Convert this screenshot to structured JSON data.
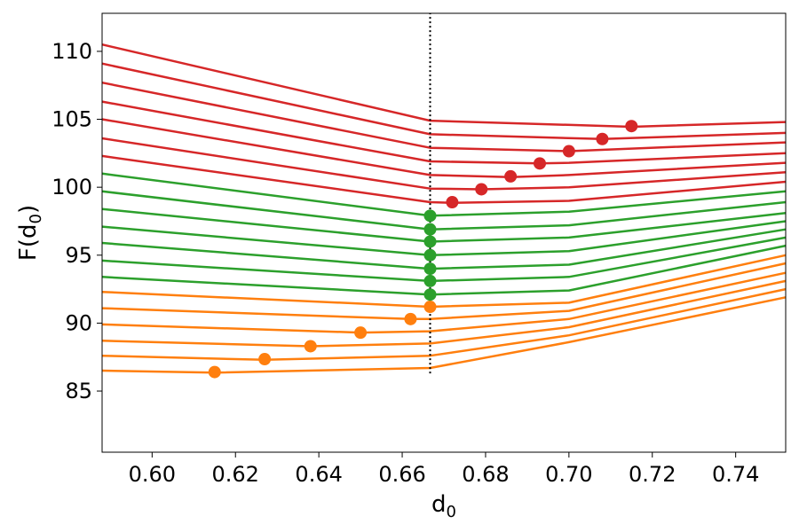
{
  "chart_data": {
    "type": "line",
    "title": "",
    "xlabel": "d",
    "xlabel_sub": "0",
    "ylabel_prefix": "F(d",
    "ylabel_sub": "0",
    "ylabel_suffix": ")",
    "xlim": [
      0.588,
      0.752
    ],
    "ylim": [
      80.5,
      112.8
    ],
    "xticks": [
      0.6,
      0.62,
      0.64,
      0.66,
      0.68,
      0.7,
      0.72,
      0.74
    ],
    "xtick_labels": [
      "0.60",
      "0.62",
      "0.64",
      "0.66",
      "0.68",
      "0.70",
      "0.72",
      "0.74"
    ],
    "yticks": [
      85,
      90,
      95,
      100,
      105,
      110
    ],
    "ytick_labels": [
      "85",
      "90",
      "95",
      "100",
      "105",
      "110"
    ],
    "grid": false,
    "vline": {
      "x": 0.6667,
      "y_range": [
        86.3,
        112.8
      ],
      "style": "dotted",
      "color": "#000000"
    },
    "colors": {
      "orange": "#ff7f0e",
      "green": "#2ca02c",
      "red": "#d62728"
    },
    "series": [
      {
        "color": "#ff7f0e",
        "points": [
          [
            0.588,
            86.5
          ],
          [
            0.615,
            86.35
          ],
          [
            0.6667,
            86.7
          ],
          [
            0.7,
            88.6
          ],
          [
            0.752,
            91.9
          ]
        ],
        "marker": [
          0.615,
          86.4
        ]
      },
      {
        "color": "#ff7f0e",
        "points": [
          [
            0.588,
            87.6
          ],
          [
            0.627,
            87.3
          ],
          [
            0.6667,
            87.6
          ],
          [
            0.7,
            89.1
          ],
          [
            0.752,
            92.5
          ]
        ],
        "marker": [
          0.627,
          87.35
        ]
      },
      {
        "color": "#ff7f0e",
        "points": [
          [
            0.588,
            88.7
          ],
          [
            0.638,
            88.3
          ],
          [
            0.6667,
            88.5
          ],
          [
            0.7,
            89.7
          ],
          [
            0.752,
            93.1
          ]
        ],
        "marker": [
          0.638,
          88.3
        ]
      },
      {
        "color": "#ff7f0e",
        "points": [
          [
            0.588,
            89.9
          ],
          [
            0.65,
            89.3
          ],
          [
            0.6667,
            89.4
          ],
          [
            0.7,
            90.3
          ],
          [
            0.752,
            93.7
          ]
        ],
        "marker": [
          0.65,
          89.3
        ]
      },
      {
        "color": "#ff7f0e",
        "points": [
          [
            0.588,
            91.1
          ],
          [
            0.662,
            90.3
          ],
          [
            0.6667,
            90.3
          ],
          [
            0.7,
            90.9
          ],
          [
            0.752,
            94.4
          ]
        ],
        "marker": [
          0.662,
          90.3
        ]
      },
      {
        "color": "#ff7f0e",
        "points": [
          [
            0.588,
            92.3
          ],
          [
            0.6667,
            91.2
          ],
          [
            0.7,
            91.5
          ],
          [
            0.752,
            95.0
          ]
        ],
        "marker": [
          0.6667,
          91.2
        ]
      },
      {
        "color": "#2ca02c",
        "points": [
          [
            0.588,
            93.4
          ],
          [
            0.6667,
            92.1
          ],
          [
            0.7,
            92.4
          ],
          [
            0.752,
            95.7
          ]
        ],
        "marker": [
          0.6667,
          92.1
        ]
      },
      {
        "color": "#2ca02c",
        "points": [
          [
            0.588,
            94.6
          ],
          [
            0.6667,
            93.1
          ],
          [
            0.7,
            93.4
          ],
          [
            0.752,
            96.3
          ]
        ],
        "marker": [
          0.6667,
          93.1
        ]
      },
      {
        "color": "#2ca02c",
        "points": [
          [
            0.588,
            95.9
          ],
          [
            0.6667,
            94.0
          ],
          [
            0.7,
            94.3
          ],
          [
            0.752,
            96.9
          ]
        ],
        "marker": [
          0.6667,
          94.0
        ]
      },
      {
        "color": "#2ca02c",
        "points": [
          [
            0.588,
            97.1
          ],
          [
            0.6667,
            95.0
          ],
          [
            0.7,
            95.3
          ],
          [
            0.752,
            97.5
          ]
        ],
        "marker": [
          0.6667,
          95.0
        ]
      },
      {
        "color": "#2ca02c",
        "points": [
          [
            0.588,
            98.4
          ],
          [
            0.6667,
            96.0
          ],
          [
            0.7,
            96.3
          ],
          [
            0.752,
            98.1
          ]
        ],
        "marker": [
          0.6667,
          96.0
        ]
      },
      {
        "color": "#2ca02c",
        "points": [
          [
            0.588,
            99.7
          ],
          [
            0.6667,
            96.9
          ],
          [
            0.7,
            97.2
          ],
          [
            0.752,
            98.9
          ]
        ],
        "marker": [
          0.6667,
          96.9
        ]
      },
      {
        "color": "#2ca02c",
        "points": [
          [
            0.588,
            101.0
          ],
          [
            0.6667,
            97.9
          ],
          [
            0.7,
            98.2
          ],
          [
            0.752,
            99.7
          ]
        ],
        "marker": [
          0.6667,
          97.9
        ]
      },
      {
        "color": "#d62728",
        "points": [
          [
            0.588,
            102.3
          ],
          [
            0.6667,
            98.9
          ],
          [
            0.672,
            98.85
          ],
          [
            0.7,
            99.0
          ],
          [
            0.752,
            100.4
          ]
        ],
        "marker": [
          0.672,
          98.9
        ]
      },
      {
        "color": "#d62728",
        "points": [
          [
            0.588,
            103.6
          ],
          [
            0.6667,
            99.9
          ],
          [
            0.679,
            99.85
          ],
          [
            0.7,
            100.0
          ],
          [
            0.752,
            101.1
          ]
        ],
        "marker": [
          0.679,
          99.85
        ]
      },
      {
        "color": "#d62728",
        "points": [
          [
            0.588,
            105.0
          ],
          [
            0.6667,
            100.9
          ],
          [
            0.686,
            100.75
          ],
          [
            0.7,
            100.9
          ],
          [
            0.752,
            101.8
          ]
        ],
        "marker": [
          0.686,
          100.8
        ]
      },
      {
        "color": "#d62728",
        "points": [
          [
            0.588,
            106.3
          ],
          [
            0.6667,
            101.9
          ],
          [
            0.693,
            101.75
          ],
          [
            0.7,
            101.8
          ],
          [
            0.752,
            102.5
          ]
        ],
        "marker": [
          0.693,
          101.75
        ]
      },
      {
        "color": "#d62728",
        "points": [
          [
            0.588,
            107.7
          ],
          [
            0.6667,
            102.9
          ],
          [
            0.7,
            102.65
          ],
          [
            0.752,
            103.3
          ]
        ],
        "marker": [
          0.7,
          102.65
        ]
      },
      {
        "color": "#d62728",
        "points": [
          [
            0.588,
            109.1
          ],
          [
            0.6667,
            103.9
          ],
          [
            0.708,
            103.55
          ],
          [
            0.752,
            104.0
          ]
        ],
        "marker": [
          0.708,
          103.55
        ]
      },
      {
        "color": "#d62728",
        "points": [
          [
            0.588,
            110.5
          ],
          [
            0.6667,
            104.9
          ],
          [
            0.715,
            104.45
          ],
          [
            0.752,
            104.8
          ]
        ],
        "marker": [
          0.715,
          104.5
        ]
      }
    ]
  }
}
